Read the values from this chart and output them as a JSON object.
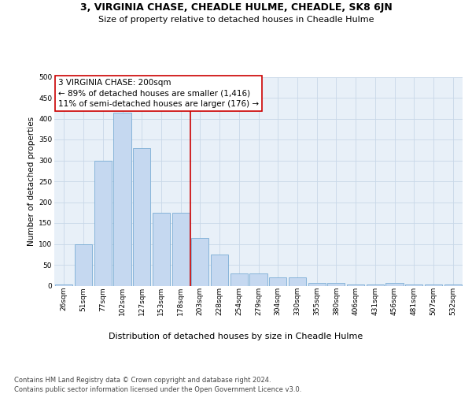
{
  "title": "3, VIRGINIA CHASE, CHEADLE HULME, CHEADLE, SK8 6JN",
  "subtitle": "Size of property relative to detached houses in Cheadle Hulme",
  "xlabel": "Distribution of detached houses by size in Cheadle Hulme",
  "ylabel": "Number of detached properties",
  "bar_labels": [
    "26sqm",
    "51sqm",
    "77sqm",
    "102sqm",
    "127sqm",
    "153sqm",
    "178sqm",
    "203sqm",
    "228sqm",
    "254sqm",
    "279sqm",
    "304sqm",
    "330sqm",
    "355sqm",
    "380sqm",
    "406sqm",
    "431sqm",
    "456sqm",
    "481sqm",
    "507sqm",
    "532sqm"
  ],
  "bar_values": [
    2,
    100,
    300,
    415,
    330,
    175,
    175,
    115,
    75,
    30,
    30,
    20,
    20,
    7,
    7,
    2,
    2,
    7,
    2,
    2,
    2
  ],
  "bar_color": "#c5d8f0",
  "bar_edge_color": "#7aadd4",
  "vline_index": 7,
  "vline_color": "#cc0000",
  "annotation_line1": "3 VIRGINIA CHASE: 200sqm",
  "annotation_line2": "← 89% of detached houses are smaller (1,416)",
  "annotation_line3": "11% of semi-detached houses are larger (176) →",
  "annotation_box_color": "#ffffff",
  "annotation_box_edge": "#cc0000",
  "grid_color": "#c8d8e8",
  "background_color": "#e8f0f8",
  "footer_text": "Contains HM Land Registry data © Crown copyright and database right 2024.\nContains public sector information licensed under the Open Government Licence v3.0.",
  "ylim": [
    0,
    500
  ],
  "yticks": [
    0,
    50,
    100,
    150,
    200,
    250,
    300,
    350,
    400,
    450,
    500
  ],
  "title_fontsize": 9,
  "subtitle_fontsize": 8,
  "xlabel_fontsize": 8,
  "ylabel_fontsize": 7.5,
  "tick_fontsize": 6.5,
  "ann_fontsize": 7.5,
  "footer_fontsize": 6
}
